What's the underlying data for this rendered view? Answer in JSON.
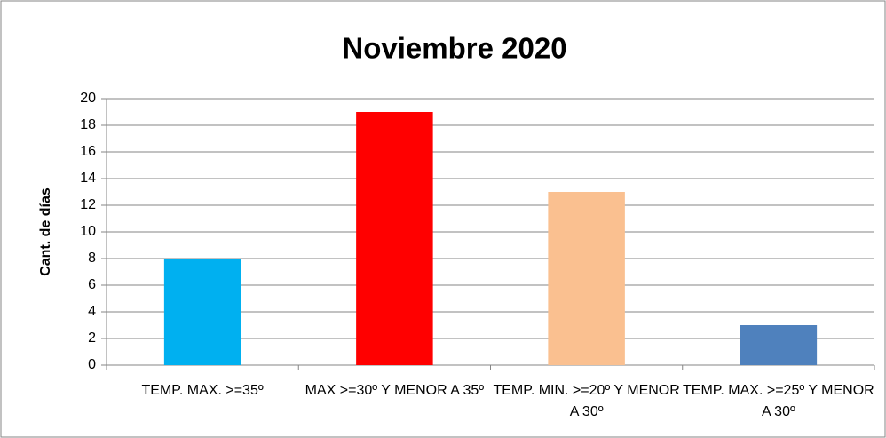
{
  "chart_data": {
    "type": "bar",
    "title": "Noviembre 2020",
    "y_label": "Cant. de días",
    "categories": [
      "TEMP. MAX. >=35º",
      "MAX >=30º Y MENOR A 35º",
      "TEMP. MIN. >=20º Y MENOR A 30º",
      "TEMP. MAX. >=25º Y MENOR A 30º"
    ],
    "values": [
      8,
      19,
      13,
      3
    ],
    "colors": [
      "#00b0f0",
      "#ff0000",
      "#fac090",
      "#4f81bd"
    ],
    "ylim": [
      0,
      20
    ],
    "yticks": [
      0,
      2,
      4,
      6,
      8,
      10,
      12,
      14,
      16,
      18,
      20
    ],
    "grid": true
  }
}
